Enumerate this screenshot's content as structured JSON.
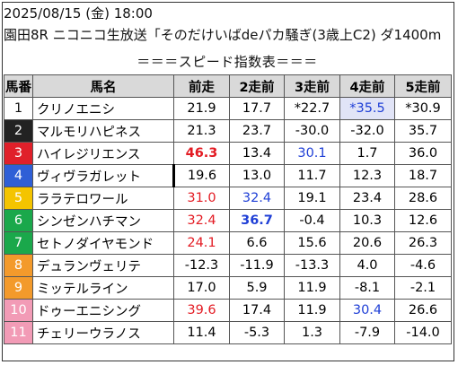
{
  "header": {
    "line1": "2025/08/15 (金) 18:00",
    "line2": "園田8R ニコニコ生放送「そのだけいばdeパカ騒ぎ(3歳上C2) ダ1400m",
    "line3": "＝＝＝スピード指数表＝＝＝"
  },
  "columns": [
    "馬番",
    "馬名",
    "前走",
    "2走前",
    "3走前",
    "4走前",
    "5走前"
  ],
  "colors": {
    "header_bg": "#d9d9d9",
    "red": "#e31b23",
    "blue": "#1f3fd6",
    "highlight_bg": "#e1e4f7"
  },
  "rows": [
    {
      "num": "1",
      "name": "クリノエニシ",
      "bg": "#ffffff",
      "fg": "#111111",
      "cells": [
        "21.9",
        "17.7",
        "*22.7",
        "*35.5",
        "*30.9"
      ]
    },
    {
      "num": "2",
      "name": "マルモリハピネス",
      "bg": "#222222",
      "fg": "#ffffff",
      "cells": [
        "21.3",
        "23.7",
        "-30.0",
        "-32.0",
        "35.7"
      ]
    },
    {
      "num": "3",
      "name": "ハイレジリエンス",
      "bg": "#e0202a",
      "fg": "#ffffff",
      "cells": [
        "46.3",
        "13.4",
        "30.1",
        "1.7",
        "36.0"
      ]
    },
    {
      "num": "4",
      "name": "ヴィヴラガレット",
      "bg": "#2f5fd6",
      "fg": "#ffffff",
      "cells": [
        "19.6",
        "13.0",
        "11.7",
        "12.3",
        "18.7"
      ]
    },
    {
      "num": "5",
      "name": "ララテロワール",
      "bg": "#f4c400",
      "fg": "#ffffff",
      "cells": [
        "31.0",
        "32.4",
        "19.1",
        "23.4",
        "28.6"
      ]
    },
    {
      "num": "6",
      "name": "シンゼンハチマン",
      "bg": "#1aa84b",
      "fg": "#ffffff",
      "cells": [
        "32.4",
        "36.7",
        "-0.4",
        "10.3",
        "12.6"
      ]
    },
    {
      "num": "7",
      "name": "セトノダイヤモンド",
      "bg": "#1aa84b",
      "fg": "#ffffff",
      "cells": [
        "24.1",
        "6.6",
        "15.6",
        "20.6",
        "26.3"
      ]
    },
    {
      "num": "8",
      "name": "デュランヴェリテ",
      "bg": "#f39a2b",
      "fg": "#ffffff",
      "cells": [
        "-12.3",
        "-11.9",
        "-13.3",
        "4.0",
        "-4.6"
      ]
    },
    {
      "num": "9",
      "name": "ミッテルライン",
      "bg": "#f39a2b",
      "fg": "#ffffff",
      "cells": [
        "17.0",
        "5.9",
        "11.9",
        "-8.1",
        "-2.1"
      ]
    },
    {
      "num": "10",
      "name": "ドゥーエニシング",
      "bg": "#f29bb6",
      "fg": "#ffffff",
      "cells": [
        "39.6",
        "17.4",
        "11.9",
        "30.4",
        "26.6"
      ]
    },
    {
      "num": "11",
      "name": "チェリーウラノス",
      "bg": "#f29bb6",
      "fg": "#ffffff",
      "cells": [
        "11.4",
        "-5.3",
        "1.3",
        "-7.9",
        "-14.0"
      ]
    }
  ]
}
